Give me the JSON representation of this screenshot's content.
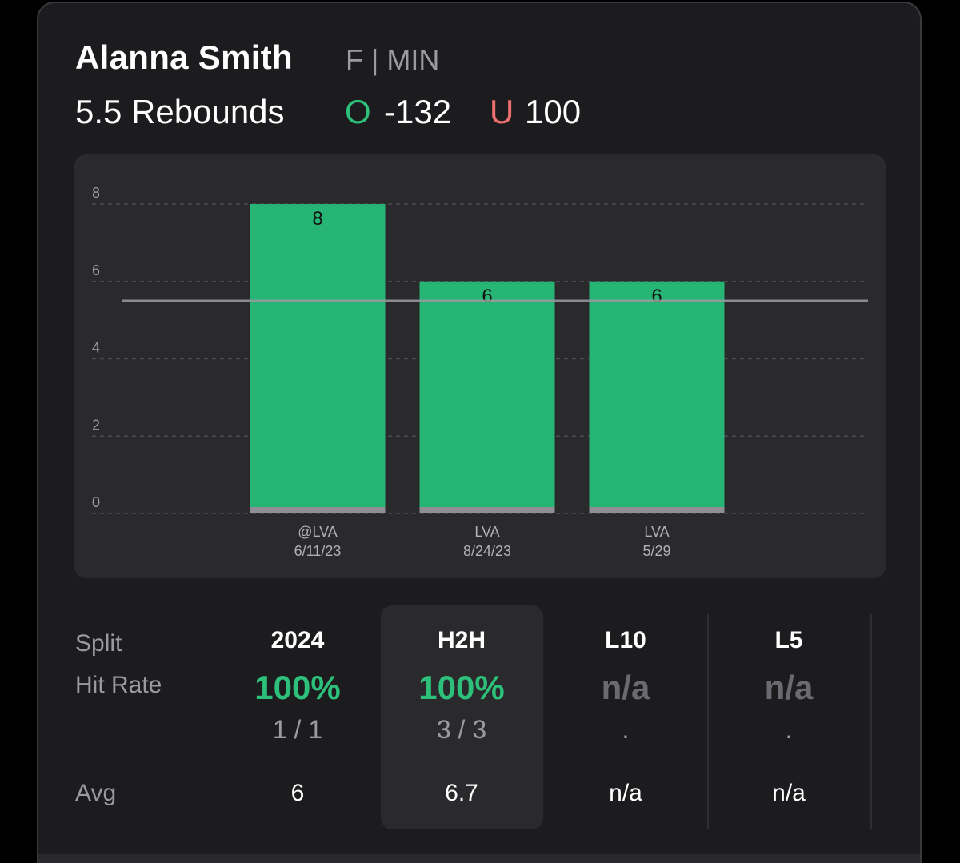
{
  "player": {
    "name": "Alanna Smith",
    "position_team": "F | MIN"
  },
  "prop": {
    "line_label": "5.5 Rebounds",
    "over_letter": "O",
    "over_odds": "-132",
    "under_letter": "U",
    "under_odds": "100"
  },
  "colors": {
    "accent_green": "#2cc07a",
    "under_red": "#f07070",
    "card_bg": "#1c1c1f",
    "panel_bg": "#2a2a2d",
    "bar_fill": "#26b574",
    "muted_text": "#9a9aa0"
  },
  "chart_data": {
    "type": "bar",
    "categories": [
      "@LVA 6/11/23",
      "LVA 8/24/23",
      "LVA 5/29"
    ],
    "category_top": [
      "@LVA",
      "LVA",
      "LVA"
    ],
    "category_bottom": [
      "6/11/23",
      "8/24/23",
      "5/29"
    ],
    "values": [
      8,
      6,
      6
    ],
    "data_labels": [
      "8",
      "6",
      "6"
    ],
    "y_ticks": [
      0,
      2,
      4,
      6,
      8
    ],
    "ylim": [
      0,
      8
    ],
    "threshold_line": 5.5,
    "grid": true,
    "title": "",
    "xlabel": "",
    "ylabel": ""
  },
  "splits": {
    "split_label": "Split",
    "hit_rate_label": "Hit Rate",
    "avg_label": "Avg",
    "columns": [
      {
        "header": "2024",
        "hit_rate": "100%",
        "fraction": "1 / 1",
        "avg": "6",
        "style": "green",
        "highlighted": false
      },
      {
        "header": "H2H",
        "hit_rate": "100%",
        "fraction": "3 / 3",
        "avg": "6.7",
        "style": "green",
        "highlighted": true
      },
      {
        "header": "L10",
        "hit_rate": "n/a",
        "fraction": ".",
        "avg": "n/a",
        "style": "gray",
        "highlighted": false
      },
      {
        "header": "L5",
        "hit_rate": "n/a",
        "fraction": ".",
        "avg": "n/a",
        "style": "gray",
        "highlighted": false
      }
    ]
  }
}
